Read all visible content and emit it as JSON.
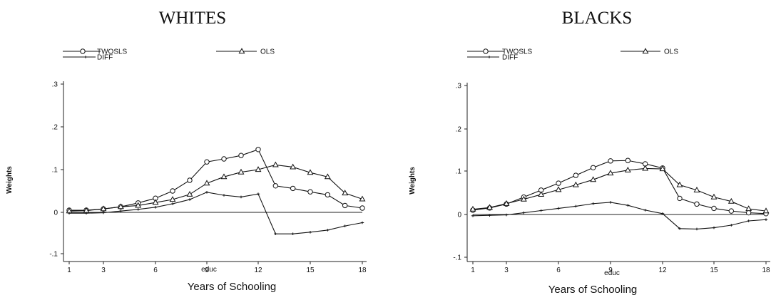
{
  "chart_data": [
    {
      "type": "line",
      "title": "WHITES",
      "ylabel": "Weights",
      "xsublabel": "educ",
      "xlabel": "Years of Schooling",
      "x": [
        1,
        2,
        3,
        4,
        5,
        6,
        7,
        8,
        9,
        10,
        11,
        12,
        13,
        14,
        15,
        16,
        17,
        18
      ],
      "xticks": [
        "1",
        "3",
        "6",
        "9",
        "12",
        "15",
        "18"
      ],
      "xticks_values": [
        1,
        3,
        6,
        9,
        12,
        15,
        18
      ],
      "yticks": [
        "-.1",
        "0",
        ".1",
        ".2",
        ".3"
      ],
      "yticks_values": [
        -0.1,
        0,
        0.1,
        0.2,
        0.3
      ],
      "xlim": [
        1,
        18
      ],
      "ylim": [
        -0.11,
        0.32
      ],
      "legend": "top",
      "series": [
        {
          "name": "TWOSLS",
          "marker": "circle",
          "values": [
            0.005,
            0.005,
            0.008,
            0.013,
            0.022,
            0.033,
            0.05,
            0.075,
            0.118,
            0.125,
            0.133,
            0.147,
            0.062,
            0.056,
            0.048,
            0.041,
            0.016,
            0.01
          ]
        },
        {
          "name": "OLS",
          "marker": "triangle",
          "values": [
            0.003,
            0.004,
            0.008,
            0.013,
            0.016,
            0.023,
            0.03,
            0.042,
            0.068,
            0.083,
            0.094,
            0.1,
            0.111,
            0.106,
            0.093,
            0.083,
            0.045,
            0.031
          ]
        },
        {
          "name": "DIFF",
          "marker": "plus",
          "values": [
            -0.002,
            -0.002,
            -0.001,
            0.003,
            0.007,
            0.012,
            0.02,
            0.03,
            0.047,
            0.04,
            0.036,
            0.043,
            -0.052,
            -0.052,
            -0.048,
            -0.043,
            -0.033,
            -0.025
          ]
        }
      ]
    },
    {
      "type": "line",
      "title": "BLACKS",
      "ylabel": "Weights",
      "xsublabel": "educ",
      "xlabel": "Years of Schooling",
      "x": [
        1,
        2,
        3,
        4,
        5,
        6,
        7,
        8,
        9,
        10,
        11,
        12,
        13,
        14,
        15,
        16,
        17,
        18
      ],
      "xticks": [
        "1",
        "3",
        "6",
        "9",
        "12",
        "15",
        "18"
      ],
      "xticks_values": [
        1,
        3,
        6,
        9,
        12,
        15,
        18
      ],
      "yticks": [
        "-.1",
        "0",
        ".1",
        ".2",
        ".3"
      ],
      "yticks_values": [
        -0.1,
        0,
        0.1,
        0.2,
        0.3
      ],
      "xlim": [
        1,
        18
      ],
      "ylim": [
        -0.11,
        0.32
      ],
      "legend": "top",
      "series": [
        {
          "name": "TWOSLS",
          "marker": "circle",
          "values": [
            0.01,
            0.015,
            0.024,
            0.04,
            0.056,
            0.072,
            0.09,
            0.108,
            0.124,
            0.125,
            0.117,
            0.107,
            0.037,
            0.024,
            0.014,
            0.008,
            0.004,
            0.002
          ]
        },
        {
          "name": "OLS",
          "marker": "triangle",
          "values": [
            0.012,
            0.016,
            0.025,
            0.035,
            0.046,
            0.057,
            0.068,
            0.08,
            0.095,
            0.102,
            0.106,
            0.105,
            0.068,
            0.056,
            0.04,
            0.03,
            0.013,
            0.008
          ]
        },
        {
          "name": "DIFF",
          "marker": "plus",
          "values": [
            -0.003,
            -0.002,
            -0.001,
            0.004,
            0.009,
            0.014,
            0.019,
            0.025,
            0.028,
            0.021,
            0.01,
            0.002,
            -0.033,
            -0.034,
            -0.031,
            -0.025,
            -0.015,
            -0.012
          ]
        }
      ]
    }
  ]
}
